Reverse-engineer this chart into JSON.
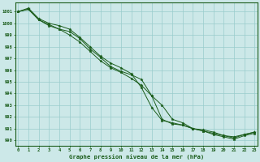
{
  "title": "Graphe pression niveau de la mer (hPa)",
  "background_color": "#cce8e8",
  "grid_color": "#99cccc",
  "line_color": "#1a5c1a",
  "x_ticks": [
    0,
    1,
    2,
    3,
    4,
    5,
    6,
    7,
    8,
    9,
    10,
    11,
    12,
    13,
    14,
    15,
    16,
    17,
    18,
    19,
    20,
    21,
    22,
    23
  ],
  "ylim": [
    989.5,
    1001.8
  ],
  "xlim": [
    -0.3,
    23.3
  ],
  "y_ticks": [
    990,
    991,
    992,
    993,
    994,
    995,
    996,
    997,
    998,
    999,
    1000,
    1001
  ],
  "series1": [
    1001.0,
    1001.2,
    1000.3,
    999.9,
    999.5,
    999.0,
    998.4,
    997.6,
    996.8,
    996.2,
    995.8,
    995.3,
    994.7,
    993.8,
    993.0,
    991.8,
    991.5,
    991.0,
    990.9,
    990.7,
    990.4,
    990.3,
    990.5,
    990.7
  ],
  "series2": [
    1001.0,
    1001.2,
    1000.3,
    999.8,
    999.5,
    999.3,
    998.7,
    997.8,
    997.1,
    996.3,
    995.9,
    995.6,
    995.2,
    993.8,
    991.8,
    991.4,
    991.3,
    991.0,
    990.8,
    990.6,
    990.4,
    990.2,
    990.5,
    990.7
  ],
  "series3": [
    1001.0,
    1001.3,
    1000.4,
    1000.0,
    999.8,
    999.5,
    998.8,
    998.0,
    997.2,
    996.6,
    996.2,
    995.7,
    994.5,
    992.8,
    991.7,
    991.5,
    991.3,
    991.0,
    990.8,
    990.5,
    990.3,
    990.1,
    990.4,
    990.6
  ]
}
